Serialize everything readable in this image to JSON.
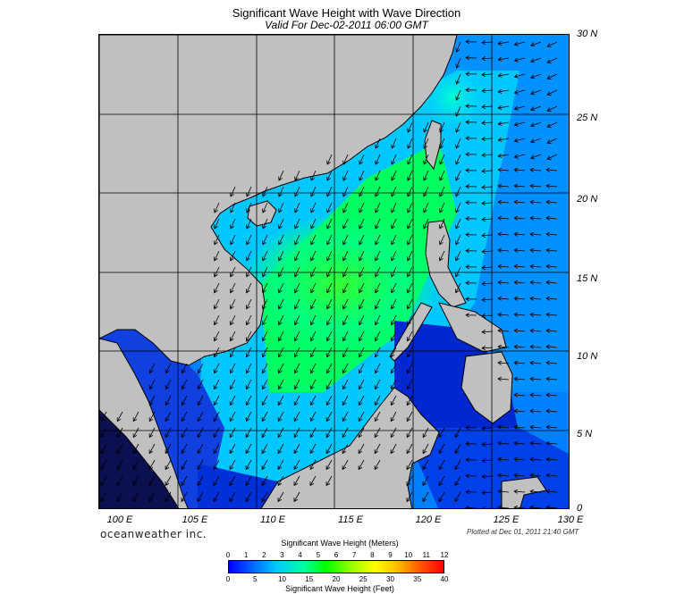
{
  "header": {
    "title": "Significant Wave Height with Wave Direction",
    "subtitle": "Valid For Dec-02-2011 06:00 GMT"
  },
  "map": {
    "lat_labels": [
      "30 N",
      "25 N",
      "20 N",
      "15 N",
      "10 N",
      "5 N",
      "0"
    ],
    "lon_labels": [
      "100 E",
      "105 E",
      "110 E",
      "115 E",
      "120 E",
      "125 E",
      "130 E"
    ],
    "lon_range": [
      100,
      130
    ],
    "lat_range": [
      0,
      30
    ],
    "grid_step_deg": 5,
    "land_color": "#c0c0c0",
    "predominant_wave_direction": "from northeast"
  },
  "footer": {
    "brand": "oceanweather inc.",
    "plotted": "Plotted at Dec 01, 2011 21:40 GMT"
  },
  "colorbar": {
    "title_meters": "Significant Wave Height (Meters)",
    "title_feet": "Significant Wave Height (Feet)",
    "meter_ticks": [
      "0",
      "1",
      "2",
      "3",
      "4",
      "5",
      "6",
      "7",
      "8",
      "9",
      "10",
      "11",
      "12"
    ],
    "feet_ticks": [
      "0",
      "5",
      "10",
      "15",
      "20",
      "25",
      "30",
      "35",
      "40"
    ]
  }
}
